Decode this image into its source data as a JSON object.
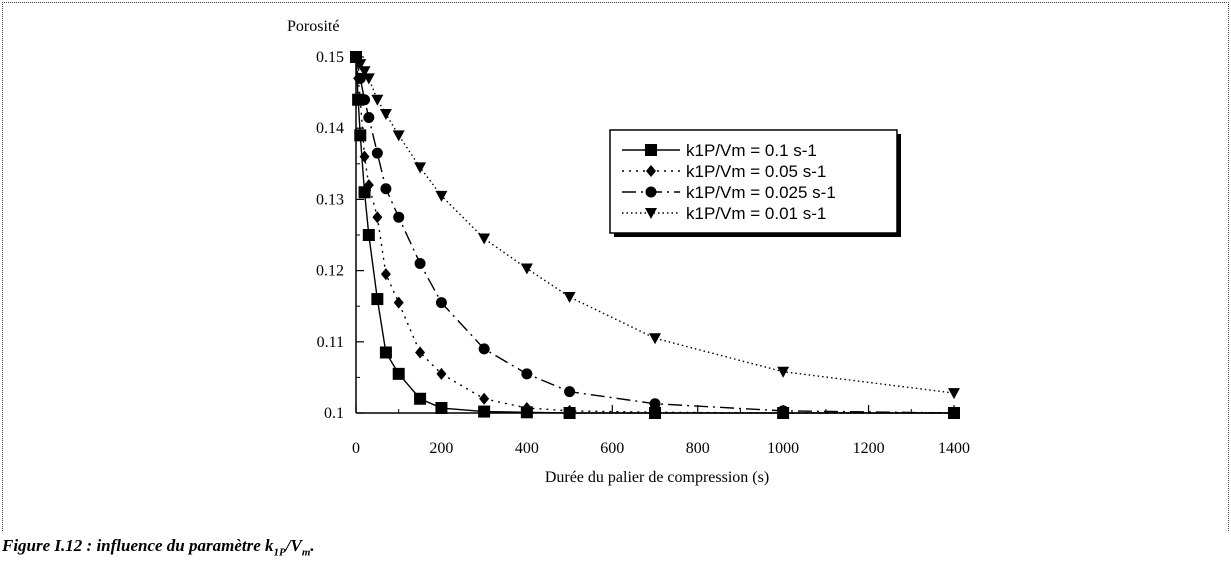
{
  "chart_data": {
    "type": "line",
    "ylabel": "Porosité",
    "xlabel": "Durée du palier de compression (s)",
    "xlim": [
      0,
      1400
    ],
    "ylim": [
      0.1,
      0.15
    ],
    "xticks": [
      0,
      200,
      400,
      600,
      800,
      1000,
      1200,
      1400
    ],
    "yticks": [
      0.1,
      0.11,
      0.12,
      0.13,
      0.14,
      0.15
    ],
    "xtick_labels": [
      "0",
      "200",
      "400",
      "600",
      "800",
      "1000",
      "1200",
      "1400"
    ],
    "ytick_labels": [
      "0.1",
      "0.11",
      "0.12",
      "0.13",
      "0.14",
      "0.15"
    ],
    "legend_position": "top-right",
    "series": [
      {
        "name": "k1P/Vm = 0.1 s-1",
        "marker": "square",
        "dash": "solid",
        "x": [
          0,
          5,
          10,
          20,
          30,
          50,
          70,
          100,
          150,
          200,
          300,
          400,
          500,
          700,
          1000,
          1400
        ],
        "y": [
          0.15,
          0.144,
          0.139,
          0.131,
          0.125,
          0.116,
          0.1085,
          0.1055,
          0.102,
          0.1007,
          0.1002,
          0.1001,
          0.1,
          0.1,
          0.1,
          0.1
        ]
      },
      {
        "name": "k1P/Vm = 0.05 s-1",
        "marker": "diamond",
        "dash": "dot",
        "x": [
          0,
          5,
          10,
          20,
          30,
          50,
          70,
          100,
          150,
          200,
          300,
          400,
          500,
          700,
          1000,
          1400
        ],
        "y": [
          0.15,
          0.147,
          0.144,
          0.136,
          0.132,
          0.1275,
          0.1195,
          0.1155,
          0.1085,
          0.1055,
          0.102,
          0.1007,
          0.1003,
          0.1001,
          0.1,
          0.1
        ]
      },
      {
        "name": "k1P/Vm = 0.025 s-1",
        "marker": "circle",
        "dash": "dashdot",
        "x": [
          0,
          10,
          20,
          30,
          50,
          70,
          100,
          150,
          200,
          300,
          400,
          500,
          700,
          1000,
          1400
        ],
        "y": [
          0.15,
          0.147,
          0.144,
          0.1415,
          0.1365,
          0.1315,
          0.1275,
          0.121,
          0.1155,
          0.109,
          0.1055,
          0.103,
          0.1013,
          0.1003,
          0.1
        ]
      },
      {
        "name": "k1P/Vm = 0.01 s-1",
        "marker": "triangle-down",
        "dash": "dotted",
        "x": [
          0,
          10,
          20,
          30,
          50,
          70,
          100,
          150,
          200,
          300,
          400,
          500,
          700,
          1000,
          1400
        ],
        "y": [
          0.15,
          0.149,
          0.148,
          0.147,
          0.144,
          0.142,
          0.139,
          0.1345,
          0.1305,
          0.1245,
          0.1203,
          0.1163,
          0.1105,
          0.1058,
          0.1028
        ]
      }
    ]
  },
  "caption": {
    "prefix": "Figure I.12 : influence du paramètre k",
    "sub1": "1P",
    "mid": "/V",
    "sub2": "m",
    "suffix": "."
  }
}
